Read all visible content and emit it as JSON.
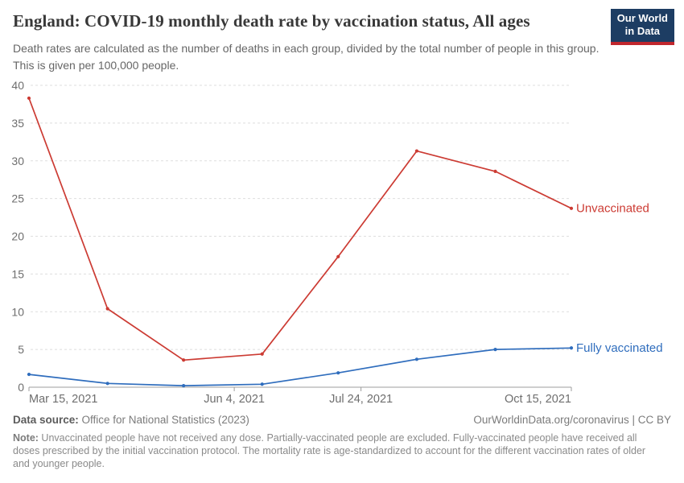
{
  "header": {
    "title": "England: COVID-19 monthly death rate by vaccination status, All ages",
    "logo_line1": "Our World",
    "logo_line2": "in Data",
    "logo_bg": "#1d3d63",
    "logo_stripe": "#c0262d"
  },
  "subtitle": "Death rates are calculated as the number of deaths in each group, divided by the total number of people in this group. This is given per 100,000 people.",
  "chart_data": {
    "type": "line",
    "title": "England: COVID-19 monthly death rate by vaccination status, All ages",
    "x_unit": "days since Mar 15, 2021",
    "x_days": [
      0,
      31,
      61,
      92,
      122,
      153,
      184,
      214
    ],
    "series": [
      {
        "name": "Unvaccinated",
        "color": "#cc3b33",
        "values": [
          38.3,
          10.4,
          3.6,
          4.4,
          17.3,
          31.3,
          28.6,
          23.7
        ]
      },
      {
        "name": "Fully vaccinated",
        "color": "#2f6dbd",
        "values": [
          1.7,
          0.5,
          0.2,
          0.4,
          1.9,
          3.7,
          5.0,
          5.2
        ]
      }
    ],
    "ylim": [
      0,
      40
    ],
    "yticks": [
      0,
      5,
      10,
      15,
      20,
      25,
      30,
      35,
      40
    ],
    "xlim_days": [
      0,
      214
    ],
    "xticks": [
      {
        "label": "Mar 15, 2021",
        "day": 0,
        "anchor": "start"
      },
      {
        "label": "Jun 4, 2021",
        "day": 81,
        "anchor": "middle"
      },
      {
        "label": "Jul 24, 2021",
        "day": 131,
        "anchor": "middle"
      },
      {
        "label": "Oct 15, 2021",
        "day": 214,
        "anchor": "end"
      }
    ],
    "grid": true,
    "legend_position": "line-end-labels",
    "grid_color": "#dedede",
    "axis_color": "#9d9d9d",
    "tick_label_color": "#6e6e6e"
  },
  "footer": {
    "source_label": "Data source:",
    "source_text": " Office for National Statistics (2023)",
    "attribution": "OurWorldinData.org/coronavirus | CC BY",
    "note_label": "Note:",
    "note_text": " Unvaccinated people have not received any dose. Partially-vaccinated people are excluded. Fully-vaccinated people have received all doses prescribed by the initial vaccination protocol. The mortality rate is age-standardized to account for the different vaccination rates of older and younger people."
  }
}
